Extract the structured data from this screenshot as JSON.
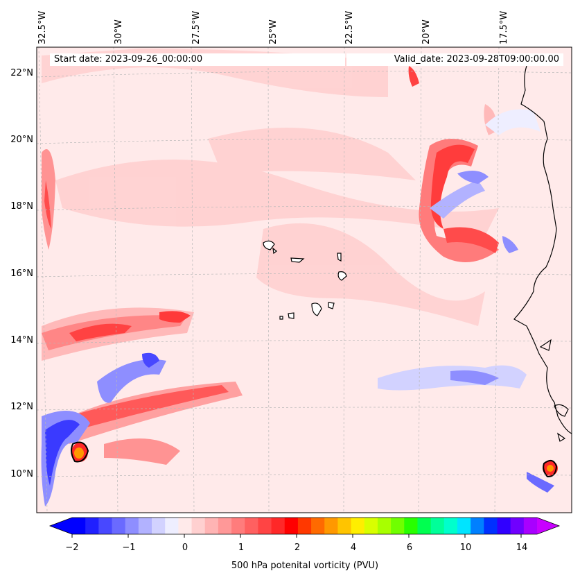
{
  "header": {
    "start_date": "Start date: 2023-09-26_00:00:00",
    "valid_date": "Valid_date: 2023-09-28T09:00:00.00"
  },
  "map": {
    "longitude_labels": [
      "32.5°W",
      "30°W",
      "27.5°W",
      "25°W",
      "22.5°W",
      "20°W",
      "17.5°W"
    ],
    "latitude_labels": [
      "22°N",
      "20°N",
      "18°N",
      "16°N",
      "14°N",
      "12°N",
      "10°N"
    ],
    "gridlines": true,
    "coastlines": true
  },
  "colorbar": {
    "title": "500 hPa potenital vorticity (PVU)",
    "tick_labels": [
      "−2",
      "−1",
      "0",
      "1",
      "2",
      "4",
      "6",
      "10",
      "14"
    ],
    "colors": [
      "#0000ff",
      "#2020ff",
      "#4848ff",
      "#6a6aff",
      "#8e8eff",
      "#b2b2ff",
      "#d2d2ff",
      "#eeeeff",
      "#ffeaea",
      "#ffd0d0",
      "#ffb4b4",
      "#ff9898",
      "#ff7c7c",
      "#ff6060",
      "#ff4444",
      "#ff2828",
      "#ff0000",
      "#ff3800",
      "#ff6a00",
      "#ff9800",
      "#ffc400",
      "#ffee00",
      "#d8ff00",
      "#a8ff00",
      "#70ff00",
      "#28ff00",
      "#00ff50",
      "#00ff99",
      "#00ffcc",
      "#00e4ff",
      "#0080ff",
      "#0030ff",
      "#3000ff",
      "#7000ff",
      "#a800ff"
    ],
    "extend_low_color": "#0000ff",
    "extend_high_color": "#c800ff"
  }
}
